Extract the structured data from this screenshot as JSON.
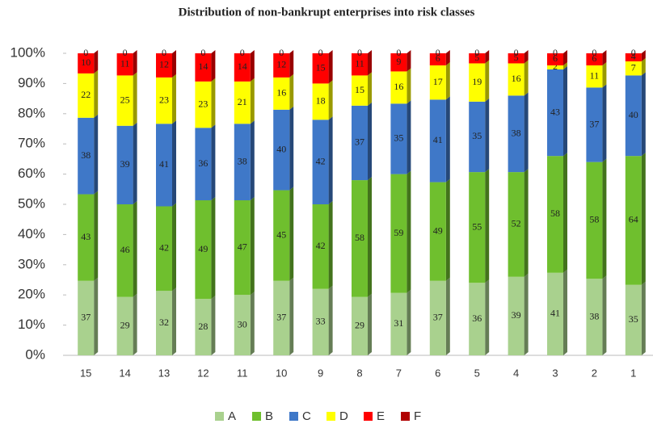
{
  "chart_data": {
    "type": "percent_stacked_bar",
    "title": "Distribution of non-bankrupt enterprises into risk classes",
    "categories": [
      "15",
      "14",
      "13",
      "12",
      "11",
      "10",
      "9",
      "8",
      "7",
      "6",
      "5",
      "4",
      "3",
      "2",
      "1"
    ],
    "series": [
      {
        "name": "A",
        "color": "#a9d18e",
        "values": [
          37,
          29,
          32,
          28,
          30,
          37,
          33,
          29,
          31,
          37,
          36,
          39,
          41,
          38,
          35
        ]
      },
      {
        "name": "B",
        "color": "#6fbf2e",
        "values": [
          43,
          46,
          42,
          49,
          47,
          45,
          42,
          58,
          59,
          49,
          55,
          52,
          58,
          58,
          64
        ]
      },
      {
        "name": "C",
        "color": "#3f78c8",
        "values": [
          38,
          39,
          41,
          36,
          38,
          40,
          42,
          37,
          35,
          41,
          35,
          38,
          43,
          37,
          40
        ]
      },
      {
        "name": "D",
        "color": "#ffff00",
        "values": [
          22,
          25,
          23,
          23,
          21,
          16,
          18,
          15,
          16,
          17,
          19,
          16,
          2,
          11,
          7
        ]
      },
      {
        "name": "E",
        "color": "#ff0000",
        "values": [
          10,
          11,
          12,
          14,
          14,
          12,
          15,
          11,
          9,
          6,
          5,
          5,
          6,
          6,
          4
        ]
      },
      {
        "name": "F",
        "color": "#b00000",
        "values": [
          0,
          0,
          0,
          0,
          0,
          0,
          0,
          0,
          0,
          0,
          0,
          0,
          0,
          0,
          0
        ]
      }
    ],
    "ylim": [
      0,
      100
    ],
    "yticks": [
      {
        "value": 0,
        "label": "0%"
      },
      {
        "value": 10,
        "label": "10%"
      },
      {
        "value": 20,
        "label": "20%"
      },
      {
        "value": 30,
        "label": "30%"
      },
      {
        "value": 40,
        "label": "40%"
      },
      {
        "value": 50,
        "label": "50%"
      },
      {
        "value": 60,
        "label": "60%"
      },
      {
        "value": 70,
        "label": "70%"
      },
      {
        "value": 80,
        "label": "80%"
      },
      {
        "value": 90,
        "label": "90%"
      },
      {
        "value": 100,
        "label": "100%"
      }
    ],
    "legend": "bottom"
  }
}
